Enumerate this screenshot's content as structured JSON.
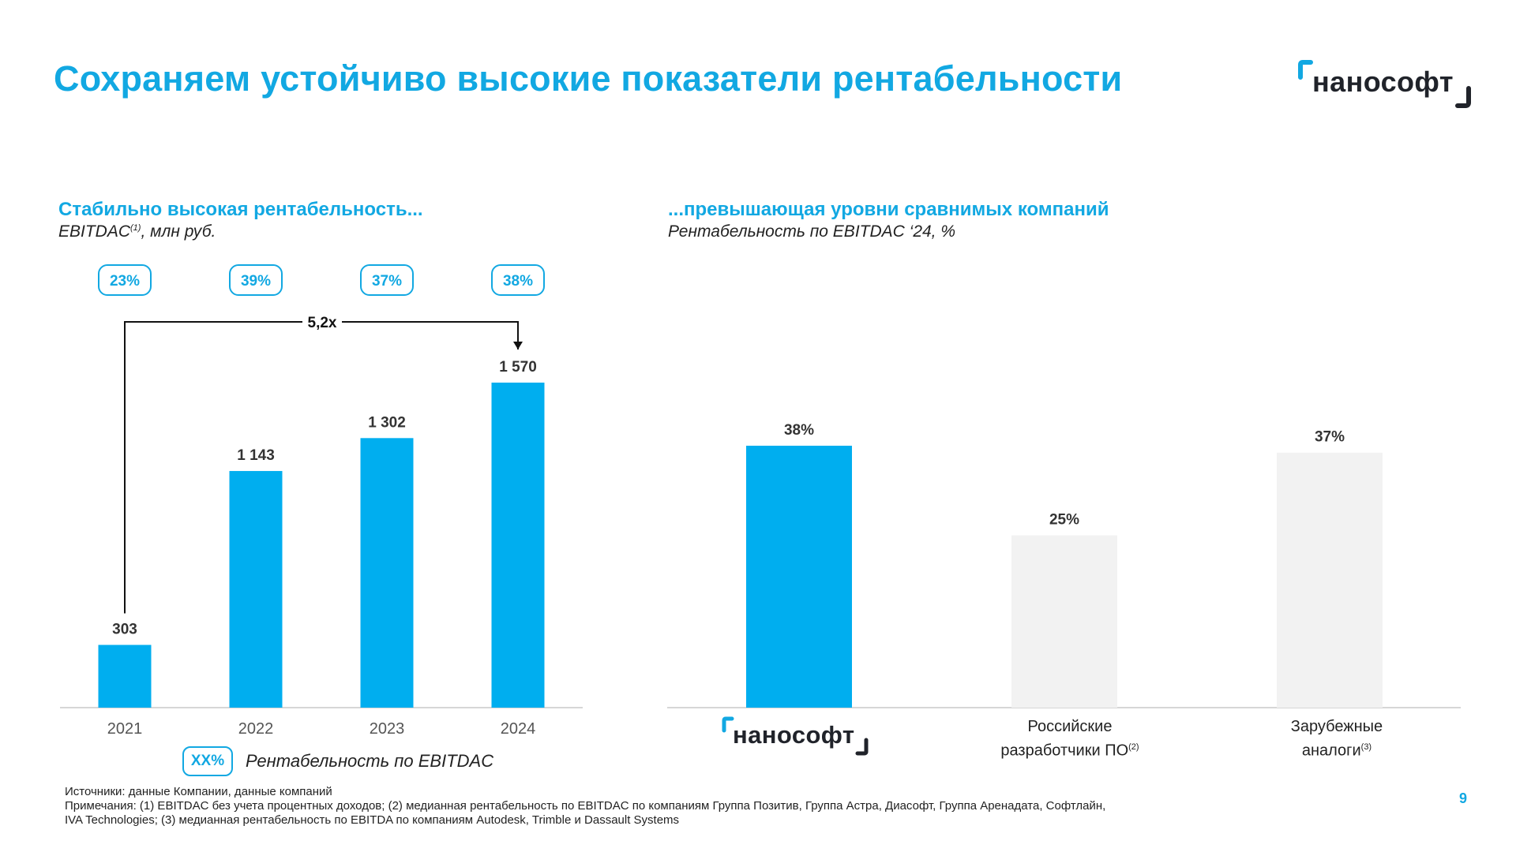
{
  "title": "Сохраняем устойчиво высокие показатели рентабельности",
  "logo": {
    "text": "нанософт"
  },
  "colors": {
    "accent": "#12a8e2",
    "bar_primary": "#00aeef",
    "bar_secondary": "#f2f2f2",
    "text": "#222222"
  },
  "left_section": {
    "title": "Стабильно высокая рентабельность...",
    "subtitle_main": "EBITDAC",
    "subtitle_sup": "(1)",
    "subtitle_rest": ", млн руб."
  },
  "right_section": {
    "title": "...превышающая уровни сравнимых компаний",
    "subtitle": "Рентабельность по EBITDAC ‘24, %"
  },
  "legend": {
    "box": "XX%",
    "text": "Рентабельность по EBITDAC"
  },
  "chart_data": [
    {
      "type": "bar",
      "title": "Стабильно высокая рентабельность...",
      "ylabel": "EBITDAC, млн руб.",
      "categories": [
        "2021",
        "2022",
        "2023",
        "2024"
      ],
      "values": [
        303,
        1143,
        1302,
        1570
      ],
      "value_labels": [
        "303",
        "1 143",
        "1 302",
        "1 570"
      ],
      "margins": [
        "23%",
        "39%",
        "37%",
        "38%"
      ],
      "growth_label": "5,2x",
      "ylim": [
        0,
        1570
      ]
    },
    {
      "type": "bar",
      "title": "...превышающая уровни сравнимых компаний",
      "ylabel": "Рентабельность по EBITDAC ‘24, %",
      "categories": [
        "нанософт",
        "Российские разработчики ПО(2)",
        "Зарубежные аналоги(3)"
      ],
      "values": [
        38,
        25,
        37
      ],
      "value_labels": [
        "38%",
        "25%",
        "37%"
      ],
      "ylim": [
        0,
        38
      ]
    }
  ],
  "right_categories": {
    "ru_line1": "Российские",
    "ru_line2": "разработчики ПО",
    "ru_sup": "(2)",
    "fr_line1": "Зарубежные",
    "fr_line2": "аналоги",
    "fr_sup": "(3)"
  },
  "footnotes": {
    "sources": "Источники: данные Компании, данные компаний",
    "notes": "Примечания: (1) EBITDAC без учета процентных доходов; (2) медианная рентабельность по EBITDAC по компаниям Группа Позитив, Группа Астра, Диасофт, Группа Аренадата, Софтлайн,",
    "notes2": "IVA Technologies; (3) медианная рентабельность по EBITDA по компаниям Autodesk, Trimble и Dassault Systems"
  },
  "page_number": "9"
}
